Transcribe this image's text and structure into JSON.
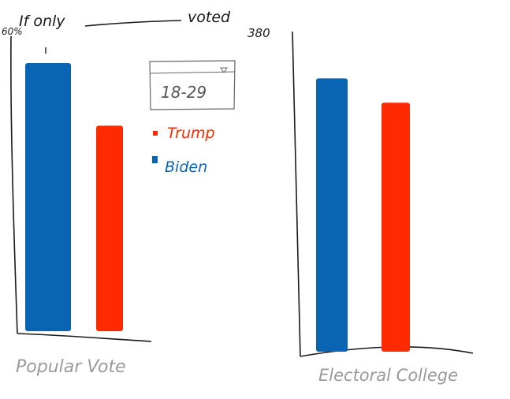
{
  "title": {
    "prefix": "If only",
    "suffix": "voted"
  },
  "dropdown": {
    "selected": "18-29"
  },
  "legend": [
    {
      "name": "Trump",
      "color": "#ff2a00"
    },
    {
      "name": "Biden",
      "color": "#0a64b4"
    }
  ],
  "colors": {
    "ink": "#1a1a1a",
    "trump": "#ff2a00",
    "biden": "#0a64b4"
  },
  "chart_data": [
    {
      "type": "bar",
      "xlabel": "Popular Vote",
      "ymax_label": "60%",
      "ylim": [
        0,
        60
      ],
      "series": [
        {
          "name": "Biden",
          "values": [
            60
          ]
        },
        {
          "name": "Trump",
          "values": [
            46
          ]
        }
      ]
    },
    {
      "type": "bar",
      "xlabel": "Electoral College",
      "ymax_label": "380",
      "ylim": [
        0,
        380
      ],
      "series": [
        {
          "name": "Biden",
          "values": [
            370
          ]
        },
        {
          "name": "Trump",
          "values": [
            337
          ]
        }
      ]
    }
  ]
}
